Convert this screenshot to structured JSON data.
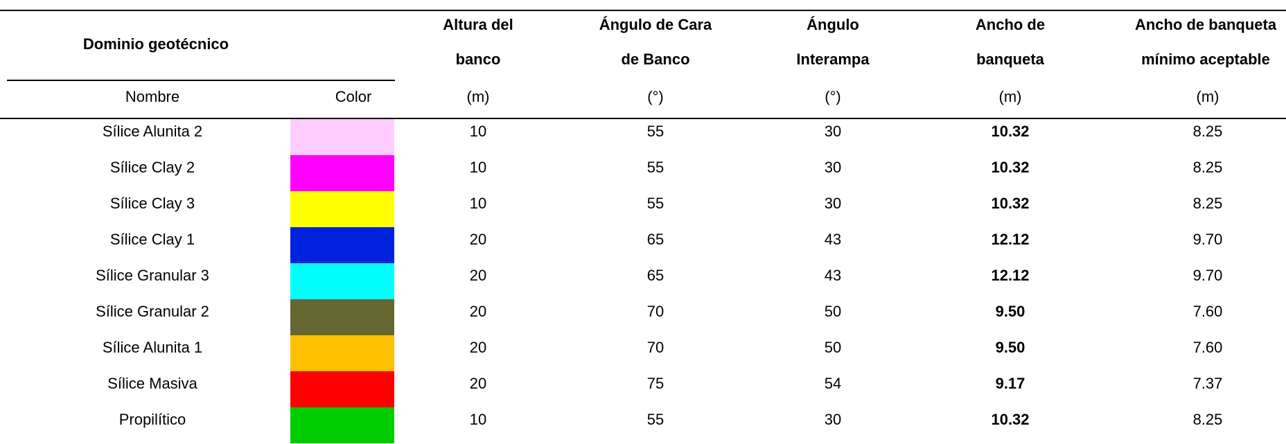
{
  "header": {
    "group": "Dominio geotécnico",
    "sub": [
      "Nombre",
      "Color"
    ],
    "columns": [
      {
        "title": [
          "Altura del",
          "banco"
        ],
        "unit": "(m)"
      },
      {
        "title": [
          "Ángulo de Cara",
          "de Banco"
        ],
        "unit": "(°)"
      },
      {
        "title": [
          "Ángulo",
          "Interampa"
        ],
        "unit": "(°)"
      },
      {
        "title": [
          "Ancho de",
          "banqueta"
        ],
        "unit": "(m)"
      },
      {
        "title": [
          "Ancho de banqueta",
          "mínimo aceptable"
        ],
        "unit": "(m)"
      }
    ]
  },
  "rows": [
    {
      "name": "Sílice Alunita 2",
      "color": "#ffccff",
      "values": [
        "10",
        "55",
        "30",
        "10.32",
        "8.25"
      ]
    },
    {
      "name": "Sílice Clay 2",
      "color": "#ff00ff",
      "values": [
        "10",
        "55",
        "30",
        "10.32",
        "8.25"
      ]
    },
    {
      "name": "Sílice Clay 3",
      "color": "#ffff00",
      "values": [
        "10",
        "55",
        "30",
        "10.32",
        "8.25"
      ]
    },
    {
      "name": "Sílice Clay 1",
      "color": "#0022dd",
      "values": [
        "20",
        "65",
        "43",
        "12.12",
        "9.70"
      ]
    },
    {
      "name": "Sílice Granular 3",
      "color": "#00ffff",
      "values": [
        "20",
        "65",
        "43",
        "12.12",
        "9.70"
      ]
    },
    {
      "name": "Sílice Granular 2",
      "color": "#666633",
      "values": [
        "20",
        "70",
        "50",
        "9.50",
        "7.60"
      ]
    },
    {
      "name": "Sílice Alunita 1",
      "color": "#ffc000",
      "values": [
        "20",
        "70",
        "50",
        "9.50",
        "7.60"
      ]
    },
    {
      "name": "Sílice Masiva",
      "color": "#ff0000",
      "values": [
        "20",
        "75",
        "54",
        "9.17",
        "7.37"
      ]
    },
    {
      "name": "Propilítico",
      "color": "#00cc00",
      "values": [
        "10",
        "55",
        "30",
        "10.32",
        "8.25"
      ]
    }
  ]
}
